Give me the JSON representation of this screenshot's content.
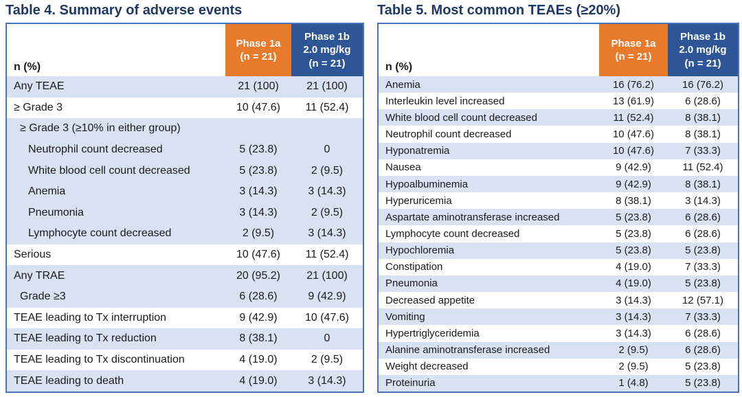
{
  "colors": {
    "title_navy": "#1F3864",
    "header_orange": "#E87A2B",
    "header_blue": "#2E5697",
    "row_light_blue": "#D9E2F3",
    "table_border_blue": "#4A74BC",
    "header_text": "#FFFFFF",
    "body_text": "#1A1A1A"
  },
  "tables": [
    {
      "title": "Table 4. Summary of adverse events",
      "col_header_label": "n (%)",
      "col_headers": [
        {
          "text": "Phase 1a\n(n = 21)",
          "bg": "orange"
        },
        {
          "text": "Phase 1b\n2.0 mg/kg\n(n = 21)",
          "bg": "blue"
        }
      ],
      "rows": [
        {
          "label": "Any TEAE",
          "phase1a": "21 (100)",
          "phase1b": "21 (100)",
          "shade": "blue",
          "indent": 0
        },
        {
          "label": "≥ Grade 3",
          "phase1a": "10 (47.6)",
          "phase1b": "11 (52.4)",
          "shade": "white",
          "indent": 0
        },
        {
          "label": "≥ Grade 3 (≥10% in either group)",
          "phase1a": "",
          "phase1b": "",
          "shade": "blue",
          "indent": 1
        },
        {
          "label": "Neutrophil count decreased",
          "phase1a": "5 (23.8)",
          "phase1b": "0",
          "shade": "blue",
          "indent": 2
        },
        {
          "label": "White blood cell count decreased",
          "phase1a": "5 (23.8)",
          "phase1b": "2 (9.5)",
          "shade": "blue",
          "indent": 2
        },
        {
          "label": "Anemia",
          "phase1a": "3 (14.3)",
          "phase1b": "3 (14.3)",
          "shade": "blue",
          "indent": 2
        },
        {
          "label": "Pneumonia",
          "phase1a": "3 (14.3)",
          "phase1b": "2 (9.5)",
          "shade": "blue",
          "indent": 2
        },
        {
          "label": "Lymphocyte count decreased",
          "phase1a": "2 (9.5)",
          "phase1b": "3 (14.3)",
          "shade": "blue",
          "indent": 2
        },
        {
          "label": "Serious",
          "phase1a": "10 (47.6)",
          "phase1b": "11 (52.4)",
          "shade": "white",
          "indent": 0
        },
        {
          "label": "Any TRAE",
          "phase1a": "20 (95.2)",
          "phase1b": "21 (100)",
          "shade": "blue",
          "indent": 0
        },
        {
          "label": "Grade ≥3",
          "phase1a": "6 (28.6)",
          "phase1b": "9 (42.9)",
          "shade": "blue",
          "indent": 1
        },
        {
          "label": "TEAE leading to Tx interruption",
          "phase1a": "9 (42.9)",
          "phase1b": "10 (47.6)",
          "shade": "white",
          "indent": 0
        },
        {
          "label": "TEAE leading to Tx reduction",
          "phase1a": "8 (38.1)",
          "phase1b": "0",
          "shade": "blue",
          "indent": 0
        },
        {
          "label": "TEAE leading to Tx discontinuation",
          "phase1a": "4 (19.0)",
          "phase1b": "2 (9.5)",
          "shade": "white",
          "indent": 0
        },
        {
          "label": "TEAE leading to death",
          "phase1a": "4 (19.0)",
          "phase1b": "3 (14.3)",
          "shade": "blue",
          "indent": 0
        }
      ]
    },
    {
      "title": "Table 5. Most common TEAEs (≥20%)",
      "col_header_label": "n (%)",
      "col_headers": [
        {
          "text": "Phase 1a\n(n = 21)",
          "bg": "orange"
        },
        {
          "text": "Phase 1b\n2.0 mg/kg\n(n = 21)",
          "bg": "blue"
        }
      ],
      "rows": [
        {
          "label": "Anemia",
          "phase1a": "16 (76.2)",
          "phase1b": "16 (76.2)",
          "shade": "blue",
          "indent": 0
        },
        {
          "label": "Interleukin level increased",
          "phase1a": "13 (61.9)",
          "phase1b": "6 (28.6)",
          "shade": "white",
          "indent": 0
        },
        {
          "label": "White blood cell count decreased",
          "phase1a": "11 (52.4)",
          "phase1b": "8 (38.1)",
          "shade": "blue",
          "indent": 0
        },
        {
          "label": "Neutrophil count decreased",
          "phase1a": "10 (47.6)",
          "phase1b": "8 (38.1)",
          "shade": "white",
          "indent": 0
        },
        {
          "label": "Hyponatremia",
          "phase1a": "10 (47.6)",
          "phase1b": "7 (33.3)",
          "shade": "blue",
          "indent": 0
        },
        {
          "label": "Nausea",
          "phase1a": "9 (42.9)",
          "phase1b": "11 (52.4)",
          "shade": "white",
          "indent": 0
        },
        {
          "label": "Hypoalbuminemia",
          "phase1a": "9 (42.9)",
          "phase1b": "8 (38.1)",
          "shade": "blue",
          "indent": 0
        },
        {
          "label": "Hyperuricemia",
          "phase1a": "8 (38.1)",
          "phase1b": "3 (14.3)",
          "shade": "white",
          "indent": 0
        },
        {
          "label": "Aspartate aminotransferase increased",
          "phase1a": "5 (23.8)",
          "phase1b": "6 (28.6)",
          "shade": "blue",
          "indent": 0
        },
        {
          "label": "Lymphocyte count decreased",
          "phase1a": "5 (23.8)",
          "phase1b": "6 (28.6)",
          "shade": "white",
          "indent": 0
        },
        {
          "label": "Hypochloremia",
          "phase1a": "5 (23.8)",
          "phase1b": "5 (23.8)",
          "shade": "blue",
          "indent": 0
        },
        {
          "label": "Constipation",
          "phase1a": "4 (19.0)",
          "phase1b": "7 (33.3)",
          "shade": "white",
          "indent": 0
        },
        {
          "label": "Pneumonia",
          "phase1a": "4 (19.0)",
          "phase1b": "5 (23.8)",
          "shade": "blue",
          "indent": 0
        },
        {
          "label": "Decreased appetite",
          "phase1a": "3 (14.3)",
          "phase1b": "12 (57.1)",
          "shade": "white",
          "indent": 0
        },
        {
          "label": "Vomiting",
          "phase1a": "3 (14.3)",
          "phase1b": "7 (33.3)",
          "shade": "blue",
          "indent": 0
        },
        {
          "label": "Hypertriglyceridemia",
          "phase1a": "3 (14.3)",
          "phase1b": "6 (28.6)",
          "shade": "white",
          "indent": 0
        },
        {
          "label": "Alanine aminotransferase increased",
          "phase1a": "2 (9.5)",
          "phase1b": "6 (28.6)",
          "shade": "blue",
          "indent": 0
        },
        {
          "label": "Weight decreased",
          "phase1a": "2 (9.5)",
          "phase1b": "5 (23.8)",
          "shade": "white",
          "indent": 0
        },
        {
          "label": "Proteinuria",
          "phase1a": "1 (4.8)",
          "phase1b": "5 (23.8)",
          "shade": "blue",
          "indent": 0
        }
      ]
    }
  ]
}
